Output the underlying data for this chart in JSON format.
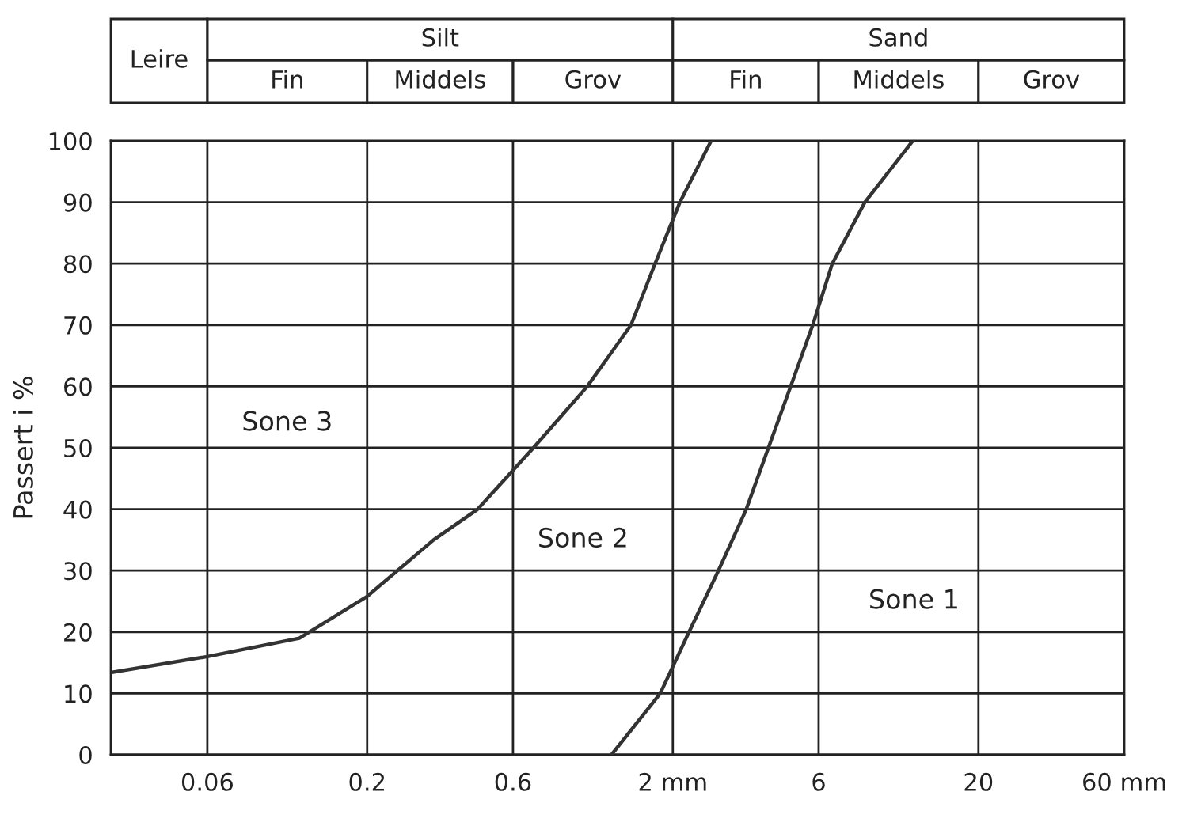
{
  "chart_data": [
    {
      "type": "other",
      "annotations": [
        "Leire",
        "Silt",
        "Sand",
        "Fin",
        "Middels",
        "Grov",
        "Fin",
        "Middels",
        "Grov"
      ]
    },
    {
      "type": "line",
      "ylabel": "Passert i %",
      "log": "x",
      "grid": true,
      "line_style": "solid",
      "marker": "none",
      "xlim": [
        0.029,
        60
      ],
      "xticks": [
        {
          "value": 0.06,
          "label": "0.06"
        },
        {
          "value": 0.2,
          "label": "0.2"
        },
        {
          "value": 0.6,
          "label": "0.6"
        },
        {
          "value": 2,
          "label": "2 mm"
        },
        {
          "value": 6,
          "label": "6"
        },
        {
          "value": 20,
          "label": "20"
        },
        {
          "value": 60,
          "label": "60 mm"
        }
      ],
      "ylim": [
        0,
        100
      ],
      "yticks": [
        0,
        10,
        20,
        30,
        40,
        50,
        60,
        70,
        80,
        90,
        100
      ],
      "series": [
        {
          "color": "#333333",
          "x": [
            0.029,
            0.06,
            0.12,
            0.2,
            0.33,
            0.46,
            0.7,
            1.05,
            1.46,
            1.75,
            2.11,
            2.67
          ],
          "values": [
            13.4,
            16,
            19,
            25.8,
            35,
            40,
            50,
            60,
            70,
            80,
            90,
            100
          ]
        },
        {
          "color": "#333333",
          "x": [
            1.26,
            1.82,
            2.26,
            2.82,
            3.48,
            4.11,
            4.86,
            5.74,
            6.65,
            8.5,
            12.2
          ],
          "values": [
            0,
            10,
            20,
            30,
            40,
            50,
            60,
            70,
            80,
            90,
            100
          ]
        }
      ],
      "annotations": [
        "Sone 3",
        "Sone 2",
        "Sone 1"
      ]
    }
  ]
}
